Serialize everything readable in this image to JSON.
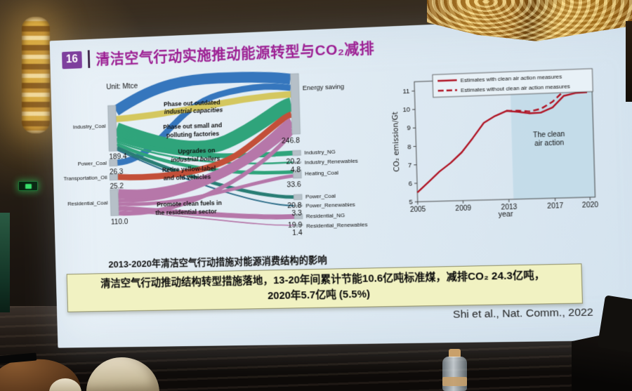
{
  "slide": {
    "number": "16",
    "title": "清洁空气行动实施推动能源转型与CO₂减排",
    "unit_label": "Unit: Mtce",
    "sankey": {
      "sources": [
        {
          "label": "Industry_Coal",
          "value": "189.4"
        },
        {
          "label": "Power_Coal",
          "value": "26.3"
        },
        {
          "label": "Transportation_Oil",
          "value": "25.2"
        },
        {
          "label": "Residential_Coal",
          "value": "110.0"
        }
      ],
      "measures": [
        {
          "line1": "Phase out outdated",
          "line2": "industrial capacities",
          "color": "#1d4fa8"
        },
        {
          "line1": "Phase out small and",
          "line2": "polluting factories",
          "color": "#8f9c52"
        },
        {
          "line1": "Upgrades on",
          "line2": "industrial boilers",
          "color": "#16418f"
        },
        {
          "line1": "Retire yellow-label",
          "line2": "and old vehicles",
          "color": "#96492a"
        },
        {
          "line1": "Promote clean fuels in",
          "line2": "the residential sector",
          "color": "#7a6a80"
        }
      ],
      "targets": [
        {
          "label": "Energy saving",
          "value": "246.8"
        },
        {
          "label": "Industry_NG",
          "value": "20.2"
        },
        {
          "label": "Industry_Renewables",
          "value": "4.8"
        },
        {
          "label": "Heating_Coal",
          "value": "33.6"
        },
        {
          "label": "Power_Coal",
          "value": "20.8"
        },
        {
          "label": "Power_Renewables",
          "value": "3.3"
        },
        {
          "label": "Residential_NG",
          "value": "19.9"
        },
        {
          "label": "Residential_Renewables",
          "value": "1.4"
        }
      ],
      "flow_colors": {
        "blue": "#1d66b5",
        "yellow": "#d2c24a",
        "green": "#169a6a",
        "teal": "#0f6e63",
        "red": "#bf3a1f",
        "purple": "#b0679f"
      }
    },
    "caption": "2013-2020年清洁空气行动措施对能源消费结构的影响",
    "highlight": {
      "line1": "清洁空气行动推动结构转型措施落地，13-20年间累计节能10.6亿吨标准煤，减排CO₂ 24.3亿吨，",
      "line2": "2020年5.7亿吨 (5.5%)"
    },
    "citation": "Shi et al., Nat. Comm., 2022"
  },
  "chart_data": {
    "type": "line",
    "title": "",
    "xlabel": "year",
    "ylabel": "CO₂ emission/Gt",
    "xlim": [
      2005,
      2020
    ],
    "ylim": [
      5,
      11.5
    ],
    "xticks": [
      2005,
      2009,
      2013,
      2017,
      2020
    ],
    "yticks": [
      5,
      6,
      7,
      8,
      9,
      10,
      11
    ],
    "legend_position": "top",
    "grid": false,
    "annotation_lines": [
      "The clean",
      "air action"
    ],
    "shaded_region": {
      "from": 2013.4,
      "to": 2020.6,
      "color": "#bfd9e7",
      "label": "The clean air action"
    },
    "series": [
      {
        "name": "Estimates with clean air action measures",
        "style": "solid",
        "color": "#b01525",
        "x": [
          2005,
          2006,
          2007,
          2008,
          2009,
          2010,
          2011,
          2012,
          2013,
          2014,
          2015,
          2016,
          2017,
          2018,
          2019,
          2020
        ],
        "values": [
          5.5,
          6.05,
          6.6,
          7.05,
          7.6,
          8.35,
          9.15,
          9.5,
          9.75,
          9.68,
          9.58,
          9.6,
          9.85,
          10.45,
          10.58,
          10.6
        ]
      },
      {
        "name": "Estimates without clean air action measures",
        "style": "dashed",
        "color": "#b01525",
        "x": [
          2013,
          2014,
          2015,
          2016,
          2017,
          2018,
          2019,
          2020
        ],
        "values": [
          9.75,
          9.74,
          9.68,
          9.8,
          10.15,
          10.7,
          11.05,
          11.18
        ]
      }
    ]
  }
}
